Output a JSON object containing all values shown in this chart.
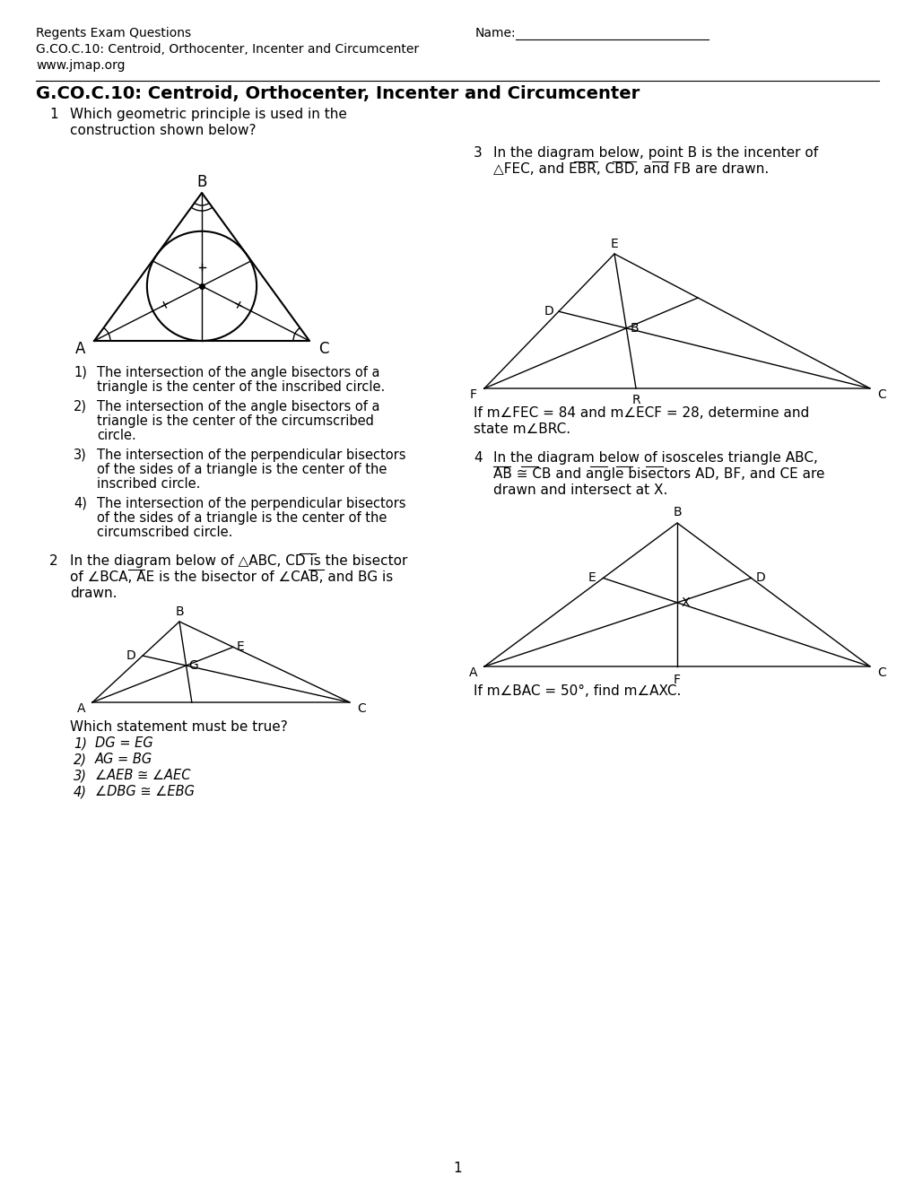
{
  "title_line1": "Regents Exam Questions",
  "title_line2": "G.CO.C.10: Centroid, Orthocenter, Incenter and Circumcenter",
  "title_line3": "www.jmap.org",
  "name_label": "Name: _______________________",
  "section_title": "G.CO.C.10: Centroid, Orthocenter, Incenter and Circumcenter",
  "q1_num": "1",
  "q1_stem": "Which geometric principle is used in the\nconstruction shown below?",
  "q1_choices": [
    "The intersection of the angle bisectors of a\ntriangle is the center of the inscribed circle.",
    "The intersection of the angle bisectors of a\ntriangle is the center of the circumscribed\ncircle.",
    "The intersection of the perpendicular bisectors\nof the sides of a triangle is the center of the\ninscribed circle.",
    "The intersection of the perpendicular bisectors\nof the sides of a triangle is the center of the\ncircumscribed circle."
  ],
  "q2_num": "2",
  "q2_line1": "In the diagram below of △ABC, CD is the bisector",
  "q2_line2": "of ∠BCA, AE is the bisector of ∠CAB, and BG is",
  "q2_line3": "drawn.",
  "q2_which": "Which statement must be true?",
  "q2_choices": [
    "DG = EG",
    "AG = BG",
    "∠AEB ≅ ∠AEC",
    "∠DBG ≅ ∠EBG"
  ],
  "q3_num": "3",
  "q3_line1": "In the diagram below, point B is the incenter of",
  "q3_line2": "△FEC, and EBR, CBD, and FB are drawn.",
  "q3_question1": "If m∠FEC = 84 and m∠ECF = 28, determine and",
  "q3_question2": "state m∠BRC.",
  "q4_num": "4",
  "q4_line1": "In the diagram below of isosceles triangle ABC,",
  "q4_line2": "AB ≅ CB and angle bisectors AD, BF, and CE are",
  "q4_line3": "drawn and intersect at X.",
  "q4_question": "If m∠BAC = 50°, find m∠AXC.",
  "page_num": "1"
}
